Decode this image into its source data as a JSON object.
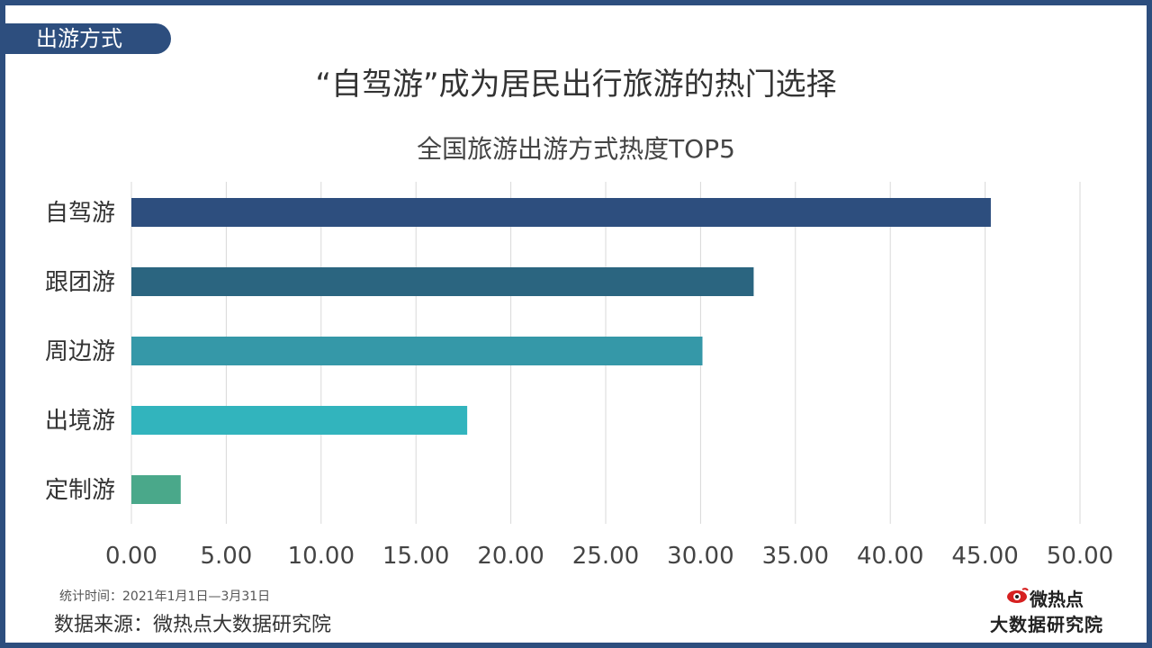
{
  "header": {
    "section_tag": "出游方式",
    "title": "“自驾游”成为居民出行旅游的热门选择"
  },
  "chart_data": {
    "type": "bar",
    "orientation": "horizontal",
    "title": "全国旅游出游方式热度TOP5",
    "categories": [
      "自驾游",
      "跟团游",
      "周边游",
      "出境游",
      "定制游"
    ],
    "values": [
      45.3,
      32.8,
      30.1,
      17.7,
      2.6
    ],
    "colors": [
      "#2d4e7e",
      "#2b6580",
      "#3598a8",
      "#32b4bd",
      "#4aa88a"
    ],
    "xlim": [
      0,
      50
    ],
    "xticks": [
      "0.00",
      "5.00",
      "10.00",
      "15.00",
      "20.00",
      "25.00",
      "30.00",
      "35.00",
      "40.00",
      "45.00",
      "50.00"
    ],
    "grid": true
  },
  "footer": {
    "note": "统计时间：2021年1月1日—3月31日",
    "source": "数据来源：微热点大数据研究院",
    "logo_top": "微热点",
    "logo_bottom": "大数据研究院"
  }
}
